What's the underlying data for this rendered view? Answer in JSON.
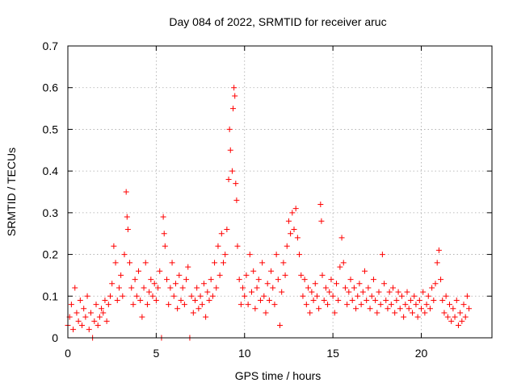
{
  "chart_data": {
    "type": "scatter",
    "title": "Day 084 of 2022, SRMTID for receiver aruc",
    "xlabel": "GPS time / hours",
    "ylabel": "SRMTID / TECUs",
    "xlim": [
      0,
      24
    ],
    "ylim": [
      0,
      0.7
    ],
    "xticks": [
      0,
      5,
      10,
      15,
      20
    ],
    "xtick_labels": [
      "0",
      "5",
      "10",
      "15",
      "20"
    ],
    "yticks": [
      0,
      0.1,
      0.2,
      0.3,
      0.4,
      0.5,
      0.6,
      0.7
    ],
    "ytick_labels": [
      "0",
      "0.1",
      "0.2",
      "0.3",
      "0.4",
      "0.5",
      "0.6",
      "0.7"
    ],
    "grid": true,
    "marker": "+",
    "series": [
      {
        "name": "SRMTID",
        "color": "#ff0000",
        "points": [
          [
            0.0,
            0.03
          ],
          [
            0.1,
            0.05
          ],
          [
            0.2,
            0.08
          ],
          [
            0.3,
            0.02
          ],
          [
            0.4,
            0.12
          ],
          [
            0.5,
            0.06
          ],
          [
            0.6,
            0.04
          ],
          [
            0.7,
            0.09
          ],
          [
            0.8,
            0.03
          ],
          [
            0.9,
            0.07
          ],
          [
            1.0,
            0.05
          ],
          [
            1.1,
            0.1
          ],
          [
            1.2,
            0.02
          ],
          [
            1.3,
            0.06
          ],
          [
            1.4,
            0.0
          ],
          [
            1.5,
            0.04
          ],
          [
            1.6,
            0.08
          ],
          [
            1.7,
            0.03
          ],
          [
            1.8,
            0.05
          ],
          [
            1.9,
            0.07
          ],
          [
            2.0,
            0.06
          ],
          [
            2.1,
            0.09
          ],
          [
            2.2,
            0.04
          ],
          [
            2.3,
            0.08
          ],
          [
            2.4,
            0.1
          ],
          [
            2.5,
            0.13
          ],
          [
            2.6,
            0.22
          ],
          [
            2.7,
            0.18
          ],
          [
            2.8,
            0.09
          ],
          [
            2.9,
            0.12
          ],
          [
            3.0,
            0.15
          ],
          [
            3.1,
            0.1
          ],
          [
            3.2,
            0.2
          ],
          [
            3.3,
            0.35
          ],
          [
            3.35,
            0.29
          ],
          [
            3.4,
            0.26
          ],
          [
            3.5,
            0.18
          ],
          [
            3.6,
            0.12
          ],
          [
            3.7,
            0.08
          ],
          [
            3.8,
            0.14
          ],
          [
            3.9,
            0.1
          ],
          [
            4.0,
            0.16
          ],
          [
            4.1,
            0.09
          ],
          [
            4.2,
            0.05
          ],
          [
            4.3,
            0.12
          ],
          [
            4.4,
            0.18
          ],
          [
            4.5,
            0.08
          ],
          [
            4.6,
            0.11
          ],
          [
            4.7,
            0.14
          ],
          [
            4.8,
            0.1
          ],
          [
            4.9,
            0.13
          ],
          [
            5.0,
            0.09
          ],
          [
            5.1,
            0.12
          ],
          [
            5.2,
            0.16
          ],
          [
            5.3,
            0.0
          ],
          [
            5.4,
            0.29
          ],
          [
            5.45,
            0.25
          ],
          [
            5.5,
            0.22
          ],
          [
            5.6,
            0.14
          ],
          [
            5.7,
            0.08
          ],
          [
            5.8,
            0.12
          ],
          [
            5.9,
            0.18
          ],
          [
            6.0,
            0.1
          ],
          [
            6.1,
            0.13
          ],
          [
            6.2,
            0.07
          ],
          [
            6.3,
            0.15
          ],
          [
            6.4,
            0.09
          ],
          [
            6.5,
            0.12
          ],
          [
            6.6,
            0.08
          ],
          [
            6.7,
            0.14
          ],
          [
            6.8,
            0.17
          ],
          [
            6.9,
            0.0
          ],
          [
            7.0,
            0.1
          ],
          [
            7.1,
            0.06
          ],
          [
            7.2,
            0.09
          ],
          [
            7.3,
            0.12
          ],
          [
            7.4,
            0.07
          ],
          [
            7.5,
            0.1
          ],
          [
            7.6,
            0.08
          ],
          [
            7.7,
            0.13
          ],
          [
            7.8,
            0.05
          ],
          [
            7.9,
            0.11
          ],
          [
            8.0,
            0.09
          ],
          [
            8.1,
            0.14
          ],
          [
            8.2,
            0.1
          ],
          [
            8.3,
            0.18
          ],
          [
            8.4,
            0.12
          ],
          [
            8.5,
            0.22
          ],
          [
            8.6,
            0.15
          ],
          [
            8.7,
            0.25
          ],
          [
            8.8,
            0.18
          ],
          [
            8.9,
            0.2
          ],
          [
            9.0,
            0.26
          ],
          [
            9.1,
            0.38
          ],
          [
            9.15,
            0.5
          ],
          [
            9.2,
            0.45
          ],
          [
            9.3,
            0.4
          ],
          [
            9.35,
            0.55
          ],
          [
            9.4,
            0.6
          ],
          [
            9.45,
            0.58
          ],
          [
            9.5,
            0.37
          ],
          [
            9.55,
            0.33
          ],
          [
            9.6,
            0.22
          ],
          [
            9.7,
            0.14
          ],
          [
            9.8,
            0.08
          ],
          [
            9.9,
            0.12
          ],
          [
            10.0,
            0.1
          ],
          [
            10.1,
            0.15
          ],
          [
            10.2,
            0.08
          ],
          [
            10.3,
            0.2
          ],
          [
            10.4,
            0.11
          ],
          [
            10.5,
            0.16
          ],
          [
            10.6,
            0.07
          ],
          [
            10.7,
            0.12
          ],
          [
            10.8,
            0.14
          ],
          [
            10.9,
            0.09
          ],
          [
            11.0,
            0.18
          ],
          [
            11.1,
            0.1
          ],
          [
            11.2,
            0.06
          ],
          [
            11.3,
            0.13
          ],
          [
            11.4,
            0.09
          ],
          [
            11.5,
            0.16
          ],
          [
            11.6,
            0.12
          ],
          [
            11.7,
            0.08
          ],
          [
            11.8,
            0.2
          ],
          [
            11.9,
            0.14
          ],
          [
            12.0,
            0.03
          ],
          [
            12.1,
            0.11
          ],
          [
            12.2,
            0.18
          ],
          [
            12.3,
            0.15
          ],
          [
            12.4,
            0.22
          ],
          [
            12.5,
            0.28
          ],
          [
            12.6,
            0.25
          ],
          [
            12.7,
            0.3
          ],
          [
            12.8,
            0.26
          ],
          [
            12.9,
            0.31
          ],
          [
            13.0,
            0.24
          ],
          [
            13.1,
            0.2
          ],
          [
            13.2,
            0.15
          ],
          [
            13.3,
            0.1
          ],
          [
            13.4,
            0.14
          ],
          [
            13.5,
            0.08
          ],
          [
            13.6,
            0.12
          ],
          [
            13.7,
            0.06
          ],
          [
            13.8,
            0.11
          ],
          [
            13.9,
            0.09
          ],
          [
            14.0,
            0.13
          ],
          [
            14.1,
            0.1
          ],
          [
            14.2,
            0.07
          ],
          [
            14.3,
            0.32
          ],
          [
            14.35,
            0.28
          ],
          [
            14.4,
            0.15
          ],
          [
            14.5,
            0.09
          ],
          [
            14.6,
            0.12
          ],
          [
            14.7,
            0.08
          ],
          [
            14.8,
            0.11
          ],
          [
            14.9,
            0.14
          ],
          [
            15.0,
            0.1
          ],
          [
            15.1,
            0.06
          ],
          [
            15.2,
            0.13
          ],
          [
            15.3,
            0.09
          ],
          [
            15.4,
            0.17
          ],
          [
            15.5,
            0.24
          ],
          [
            15.6,
            0.18
          ],
          [
            15.7,
            0.12
          ],
          [
            15.8,
            0.08
          ],
          [
            15.9,
            0.11
          ],
          [
            16.0,
            0.14
          ],
          [
            16.1,
            0.09
          ],
          [
            16.2,
            0.12
          ],
          [
            16.3,
            0.07
          ],
          [
            16.4,
            0.1
          ],
          [
            16.5,
            0.13
          ],
          [
            16.6,
            0.08
          ],
          [
            16.7,
            0.11
          ],
          [
            16.8,
            0.16
          ],
          [
            16.9,
            0.09
          ],
          [
            17.0,
            0.12
          ],
          [
            17.1,
            0.07
          ],
          [
            17.2,
            0.1
          ],
          [
            17.3,
            0.14
          ],
          [
            17.4,
            0.09
          ],
          [
            17.5,
            0.06
          ],
          [
            17.6,
            0.11
          ],
          [
            17.7,
            0.08
          ],
          [
            17.8,
            0.2
          ],
          [
            17.9,
            0.13
          ],
          [
            18.0,
            0.09
          ],
          [
            18.1,
            0.07
          ],
          [
            18.2,
            0.11
          ],
          [
            18.3,
            0.08
          ],
          [
            18.4,
            0.12
          ],
          [
            18.5,
            0.06
          ],
          [
            18.6,
            0.09
          ],
          [
            18.7,
            0.11
          ],
          [
            18.8,
            0.07
          ],
          [
            18.9,
            0.1
          ],
          [
            19.0,
            0.05
          ],
          [
            19.1,
            0.08
          ],
          [
            19.2,
            0.11
          ],
          [
            19.3,
            0.07
          ],
          [
            19.4,
            0.09
          ],
          [
            19.5,
            0.06
          ],
          [
            19.6,
            0.1
          ],
          [
            19.7,
            0.08
          ],
          [
            19.8,
            0.05
          ],
          [
            19.9,
            0.09
          ],
          [
            20.0,
            0.07
          ],
          [
            20.1,
            0.11
          ],
          [
            20.2,
            0.06
          ],
          [
            20.3,
            0.08
          ],
          [
            20.4,
            0.1
          ],
          [
            20.5,
            0.07
          ],
          [
            20.6,
            0.12
          ],
          [
            20.7,
            0.09
          ],
          [
            20.8,
            0.13
          ],
          [
            20.9,
            0.18
          ],
          [
            21.0,
            0.21
          ],
          [
            21.1,
            0.14
          ],
          [
            21.2,
            0.09
          ],
          [
            21.3,
            0.06
          ],
          [
            21.4,
            0.1
          ],
          [
            21.5,
            0.05
          ],
          [
            21.6,
            0.08
          ],
          [
            21.7,
            0.04
          ],
          [
            21.8,
            0.07
          ],
          [
            21.9,
            0.05
          ],
          [
            22.0,
            0.09
          ],
          [
            22.1,
            0.03
          ],
          [
            22.2,
            0.06
          ],
          [
            22.3,
            0.04
          ],
          [
            22.4,
            0.08
          ],
          [
            22.5,
            0.05
          ],
          [
            22.6,
            0.1
          ],
          [
            22.7,
            0.07
          ]
        ]
      }
    ]
  }
}
